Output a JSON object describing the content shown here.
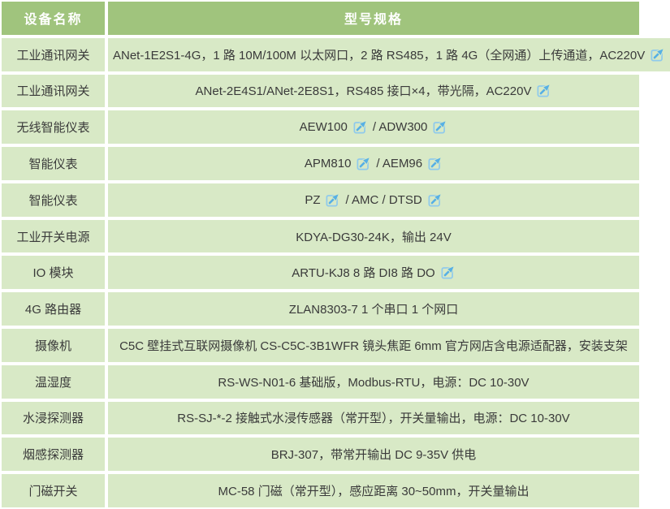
{
  "table": {
    "headers": [
      "设备名称",
      "型号规格"
    ],
    "rows": [
      {
        "name": "工业通讯网关",
        "spec": [
          {
            "text": "ANet-1E2S1-4G，1 路 10M/100M 以太网口，2 路 RS485，1 路 4G（全网通）上传通道，AC220V"
          },
          {
            "icon": "image-link-icon"
          }
        ]
      },
      {
        "name": "工业通讯网关",
        "spec": [
          {
            "text": "ANet-2E4S1/ANet-2E8S1，RS485 接口×4，带光隔，AC220V"
          },
          {
            "icon": "image-link-icon"
          }
        ]
      },
      {
        "name": "无线智能仪表",
        "spec": [
          {
            "text": "AEW100"
          },
          {
            "icon": "image-link-icon"
          },
          {
            "text": "/ ADW300"
          },
          {
            "icon": "image-link-icon"
          }
        ]
      },
      {
        "name": "智能仪表",
        "spec": [
          {
            "text": "APM810"
          },
          {
            "icon": "image-link-icon"
          },
          {
            "text": "/ AEM96"
          },
          {
            "icon": "image-link-icon"
          }
        ]
      },
      {
        "name": "智能仪表",
        "spec": [
          {
            "text": "PZ"
          },
          {
            "icon": "image-link-icon"
          },
          {
            "text": "/ AMC / DTSD"
          },
          {
            "icon": "image-link-icon"
          }
        ]
      },
      {
        "name": "工业开关电源",
        "spec": [
          {
            "text": "KDYA-DG30-24K，输出 24V"
          }
        ]
      },
      {
        "name": "IO 模块",
        "spec": [
          {
            "text": "ARTU-KJ8 8 路 DI8 路 DO"
          },
          {
            "icon": "image-link-icon"
          }
        ]
      },
      {
        "name": "4G 路由器",
        "spec": [
          {
            "text": "ZLAN8303-7 1 个串口 1 个网口"
          }
        ]
      },
      {
        "name": "摄像机",
        "spec": [
          {
            "text": "C5C 壁挂式互联网摄像机 CS-C5C-3B1WFR 镜头焦距 6mm 官方网店含电源适配器，安装支架"
          }
        ]
      },
      {
        "name": "温湿度",
        "spec": [
          {
            "text": "RS-WS-N01-6 基础版，Modbus-RTU，电源：DC 10-30V"
          }
        ]
      },
      {
        "name": "水浸探测器",
        "spec": [
          {
            "text": "RS-SJ-*-2 接触式水浸传感器（常开型），开关量输出，电源：DC 10-30V"
          }
        ]
      },
      {
        "name": "烟感探测器",
        "spec": [
          {
            "text": "BRJ-307，带常开输出 DC 9-35V 供电"
          }
        ]
      },
      {
        "name": "门磁开关",
        "spec": [
          {
            "text": "MC-58 门磁（常开型），感应距离 30~50mm，开关量输出"
          }
        ]
      }
    ]
  },
  "colors": {
    "header_bg": "#a0c47d",
    "header_text": "#ffffff",
    "row_bg": "#d8e9c6",
    "divider": "#ffffff",
    "body_text": "#3a3a3a",
    "icon_border": "#8fcaec",
    "icon_arrow": "#57b0e5"
  }
}
